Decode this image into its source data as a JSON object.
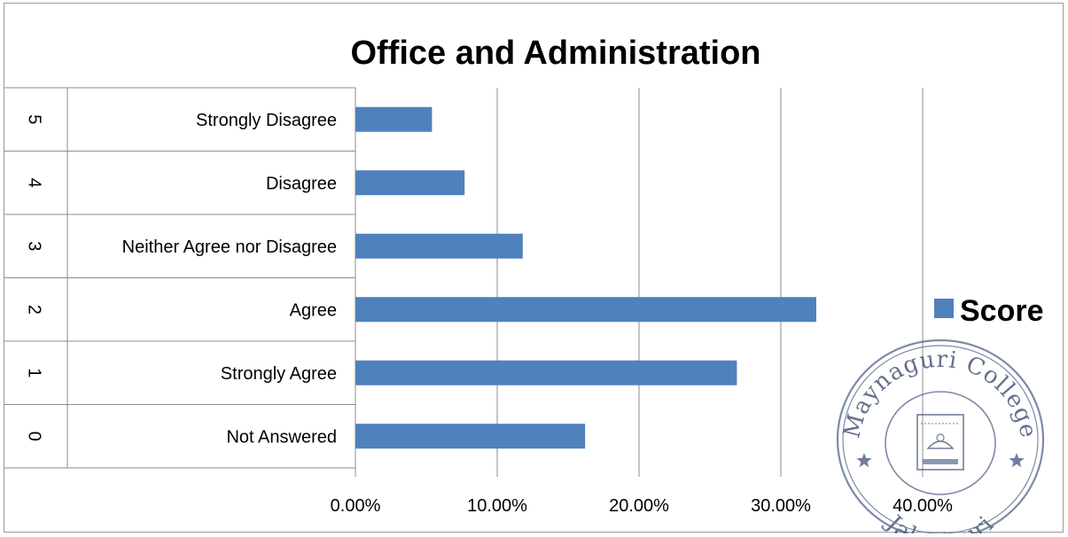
{
  "chart_data": {
    "type": "bar",
    "orientation": "horizontal",
    "title": "Office and Administration",
    "categories": [
      {
        "index": "5",
        "label": "Strongly Disagree"
      },
      {
        "index": "4",
        "label": "Disagree"
      },
      {
        "index": "3",
        "label": "Neither Agree nor Disagree"
      },
      {
        "index": "2",
        "label": "Agree"
      },
      {
        "index": "1",
        "label": "Strongly Agree"
      },
      {
        "index": "0",
        "label": "Not Answered"
      }
    ],
    "series": [
      {
        "name": "Score",
        "values": [
          5.4,
          7.7,
          11.8,
          32.5,
          26.9,
          16.2
        ]
      }
    ],
    "xlim": [
      0,
      40
    ],
    "xticks": [
      "0.00%",
      "10.00%",
      "20.00%",
      "30.00%",
      "40.00%"
    ],
    "xtick_values": [
      0,
      10,
      20,
      30,
      40
    ],
    "grid": "vertical",
    "legend": "right",
    "bar_color": "#4f81bd",
    "stamp": {
      "text_top": "Maynaguri College",
      "text_bottom": "Jalpaiguri"
    }
  }
}
